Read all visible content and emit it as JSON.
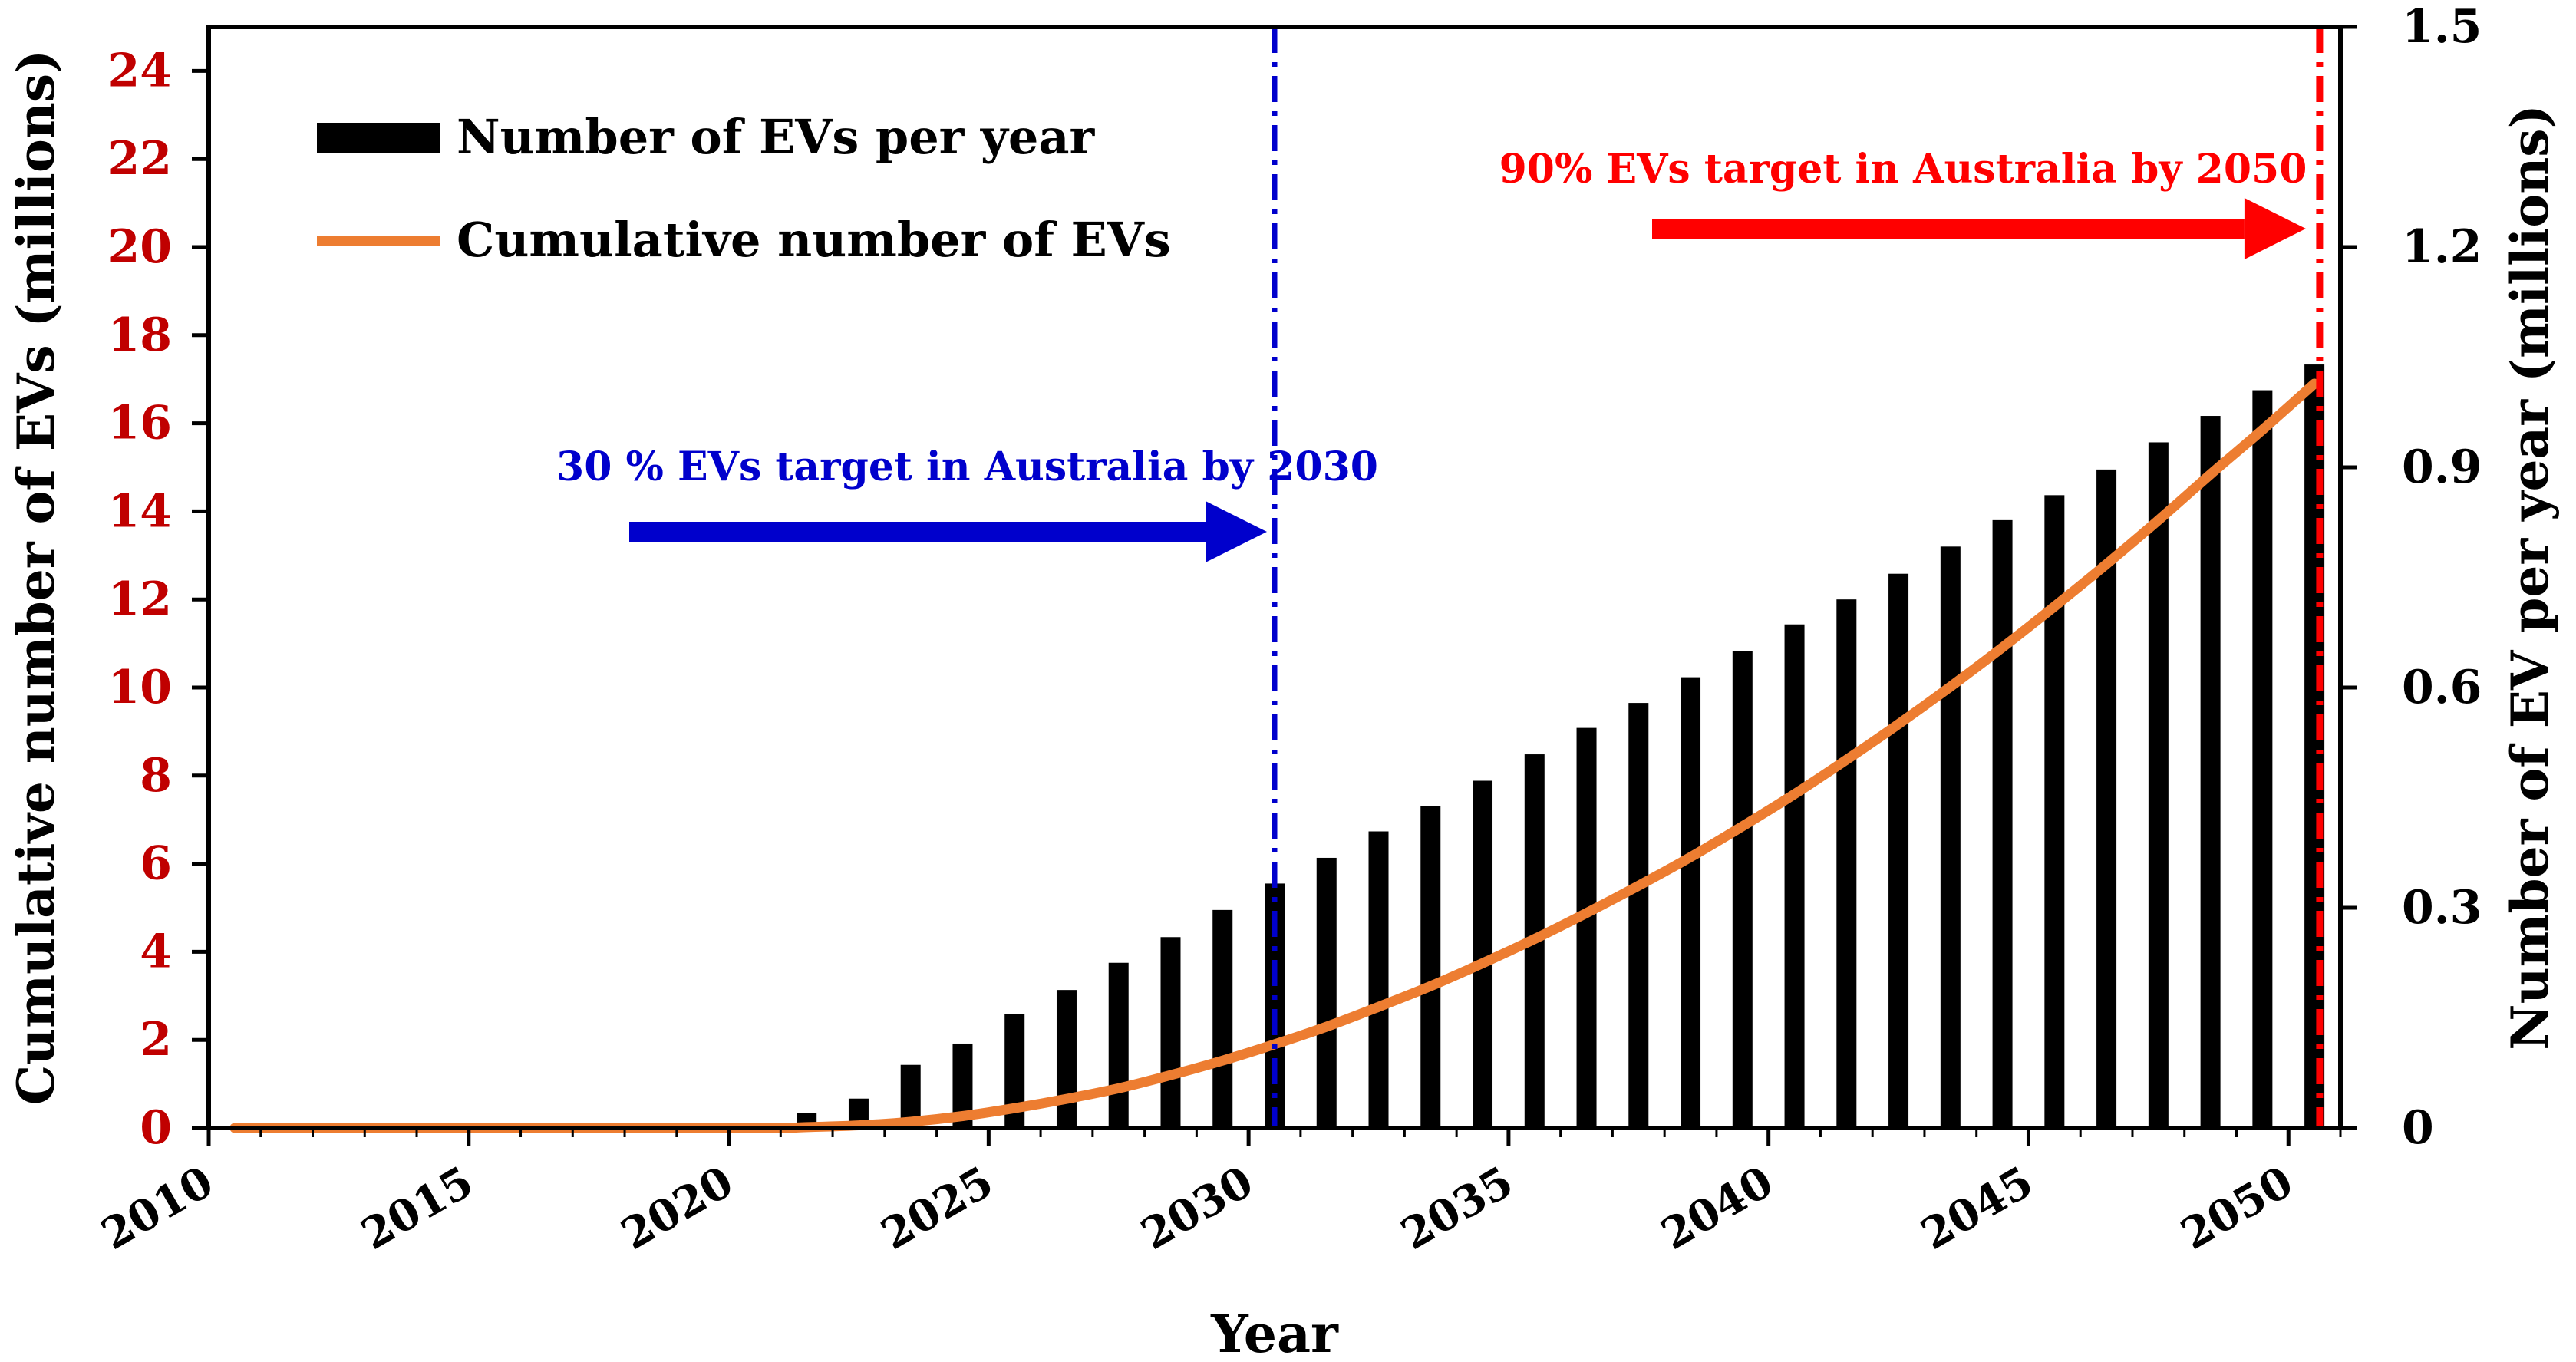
{
  "chart_data": {
    "type": "bar",
    "xlabel": "Year",
    "ylabel_left": "Cumulative number of EVs (millions)",
    "ylabel_right": "Number of EV per year (millions)",
    "xlim": [
      2010,
      2051
    ],
    "xticks": [
      "2010",
      "2015",
      "2020",
      "2025",
      "2030",
      "2035",
      "2040",
      "2045",
      "2050"
    ],
    "y_left_lim": [
      0,
      25
    ],
    "y_left_ticks": [
      "0",
      "2",
      "4",
      "6",
      "8",
      "10",
      "12",
      "14",
      "16",
      "18",
      "20",
      "22",
      "24"
    ],
    "y_right_lim": [
      0,
      1.5
    ],
    "y_right_ticks": [
      "0",
      "0.3",
      "0.6",
      "0.9",
      "1.2",
      "1.5"
    ],
    "legend_position": "top-left",
    "series": [
      {
        "name": "Number of EVs per year",
        "type": "bar",
        "axis": "right",
        "color": "#000000",
        "x": [
          2021,
          2022,
          2023,
          2024,
          2025,
          2026,
          2027,
          2028,
          2029,
          2030,
          2031,
          2032,
          2033,
          2034,
          2035,
          2036,
          2037,
          2038,
          2039,
          2040,
          2041,
          2042,
          2043,
          2044,
          2045,
          2046,
          2047,
          2048,
          2049,
          2050
        ],
        "values": [
          0.02,
          0.04,
          0.086,
          0.115,
          0.155,
          0.188,
          0.225,
          0.26,
          0.297,
          0.333,
          0.368,
          0.404,
          0.438,
          0.473,
          0.509,
          0.545,
          0.579,
          0.614,
          0.65,
          0.686,
          0.72,
          0.755,
          0.792,
          0.828,
          0.862,
          0.897,
          0.934,
          0.97,
          1.005,
          1.04
        ]
      },
      {
        "name": "Cumulative number of EVs",
        "type": "line",
        "axis": "left",
        "color": "#ED7D31",
        "x": [
          2010,
          2015,
          2020,
          2021,
          2022,
          2023,
          2024,
          2025,
          2026,
          2027,
          2028,
          2029,
          2030,
          2031,
          2032,
          2033,
          2034,
          2035,
          2036,
          2037,
          2038,
          2039,
          2040,
          2041,
          2042,
          2043,
          2044,
          2045,
          2046,
          2047,
          2048,
          2049,
          2050
        ],
        "values": [
          0,
          0,
          0,
          0.02,
          0.06,
          0.14,
          0.27,
          0.45,
          0.66,
          0.9,
          1.2,
          1.53,
          1.9,
          2.3,
          2.75,
          3.22,
          3.74,
          4.29,
          4.88,
          5.5,
          6.15,
          6.85,
          7.58,
          8.36,
          9.17,
          10.02,
          10.91,
          11.84,
          12.8,
          13.8,
          14.84,
          15.85,
          16.9
        ]
      }
    ],
    "annotations": [
      {
        "text": "30 % EVs target in Australia by 2030",
        "x": 2030.5,
        "color": "#0000CC"
      },
      {
        "text": "90% EVs target in Australia by 2050",
        "x": 2050.6,
        "color": "#FF0000"
      }
    ],
    "colors": {
      "left_axis_text": "#C00000",
      "right_axis_text": "#000000",
      "bars": "#000000",
      "line": "#ED7D31",
      "target_2030": "#0000CC",
      "target_2050": "#FF0000"
    }
  }
}
